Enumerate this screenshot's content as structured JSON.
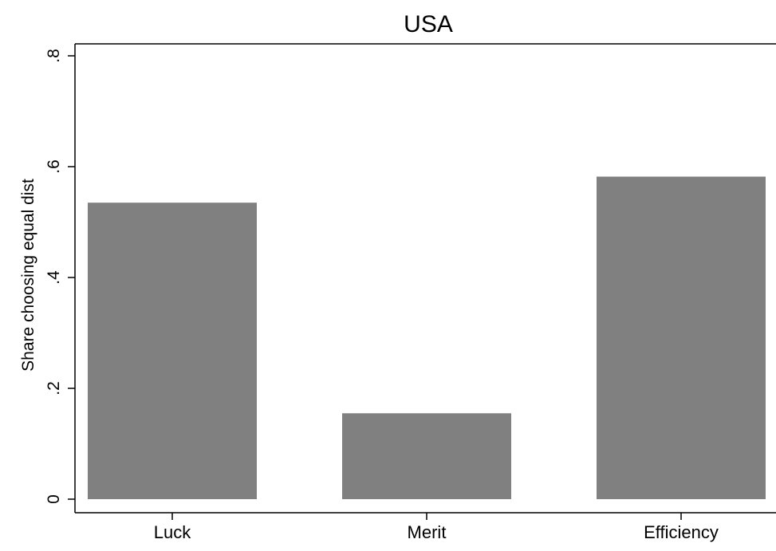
{
  "chart_data": {
    "type": "bar",
    "title": "USA",
    "ylabel": "Share choosing equal dist",
    "xlabel": "",
    "categories": [
      "Luck",
      "Merit",
      "Efficiency"
    ],
    "values": [
      0.535,
      0.155,
      0.582
    ],
    "ylim": [
      0,
      0.8
    ],
    "yticks": [
      0,
      0.2,
      0.4,
      0.6,
      0.8
    ],
    "ytick_labels": [
      "0",
      ".2",
      ".4",
      ".6",
      ".8"
    ],
    "bar_color": "#808080",
    "grid": false,
    "legend": "none"
  }
}
